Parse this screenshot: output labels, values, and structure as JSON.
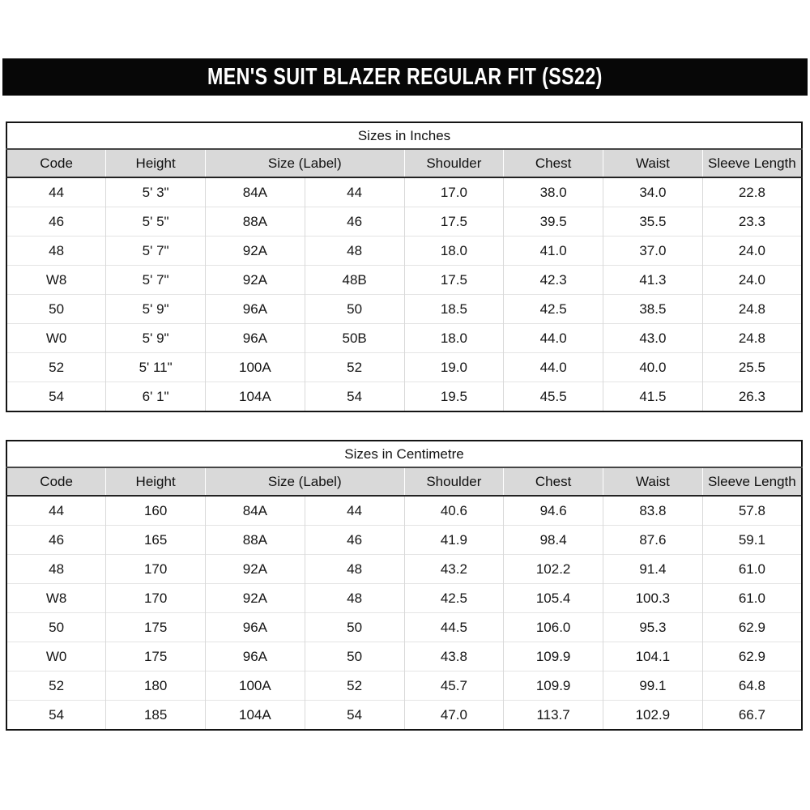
{
  "title_bar": {
    "text": "MEN'S SUIT BLAZER REGULAR FIT (SS22)",
    "background": "#070707",
    "text_color": "#ffffff"
  },
  "header": {
    "columns": [
      "Code",
      "Height",
      "Size (Label)",
      "Shoulder",
      "Chest",
      "Waist",
      "Sleeve Length"
    ],
    "spans": [
      1,
      1,
      2,
      1,
      1,
      1,
      1
    ],
    "background": "#d9d9d9"
  },
  "tables": [
    {
      "title": "Sizes in Inches",
      "rows": [
        [
          "44",
          "5' 3\"",
          "84A",
          "44",
          "17.0",
          "38.0",
          "34.0",
          "22.8"
        ],
        [
          "46",
          "5' 5\"",
          "88A",
          "46",
          "17.5",
          "39.5",
          "35.5",
          "23.3"
        ],
        [
          "48",
          "5' 7\"",
          "92A",
          "48",
          "18.0",
          "41.0",
          "37.0",
          "24.0"
        ],
        [
          "W8",
          "5' 7\"",
          "92A",
          "48B",
          "17.5",
          "42.3",
          "41.3",
          "24.0"
        ],
        [
          "50",
          "5' 9\"",
          "96A",
          "50",
          "18.5",
          "42.5",
          "38.5",
          "24.8"
        ],
        [
          "W0",
          "5' 9\"",
          "96A",
          "50B",
          "18.0",
          "44.0",
          "43.0",
          "24.8"
        ],
        [
          "52",
          "5' 11\"",
          "100A",
          "52",
          "19.0",
          "44.0",
          "40.0",
          "25.5"
        ],
        [
          "54",
          "6' 1\"",
          "104A",
          "54",
          "19.5",
          "45.5",
          "41.5",
          "26.3"
        ]
      ]
    },
    {
      "title": "Sizes in Centimetre",
      "rows": [
        [
          "44",
          "160",
          "84A",
          "44",
          "40.6",
          "94.6",
          "83.8",
          "57.8"
        ],
        [
          "46",
          "165",
          "88A",
          "46",
          "41.9",
          "98.4",
          "87.6",
          "59.1"
        ],
        [
          "48",
          "170",
          "92A",
          "48",
          "43.2",
          "102.2",
          "91.4",
          "61.0"
        ],
        [
          "W8",
          "170",
          "92A",
          "48",
          "42.5",
          "105.4",
          "100.3",
          "61.0"
        ],
        [
          "50",
          "175",
          "96A",
          "50",
          "44.5",
          "106.0",
          "95.3",
          "62.9"
        ],
        [
          "W0",
          "175",
          "96A",
          "50",
          "43.8",
          "109.9",
          "104.1",
          "62.9"
        ],
        [
          "52",
          "180",
          "100A",
          "52",
          "45.7",
          "109.9",
          "99.1",
          "64.8"
        ],
        [
          "54",
          "185",
          "104A",
          "54",
          "47.0",
          "113.7",
          "102.9",
          "66.7"
        ]
      ]
    }
  ],
  "colors": {
    "outer_border": "#141414",
    "header_bg": "#d9d9d9",
    "row_divider": "#e4e4e4",
    "column_divider": "#d9d9d9",
    "title_bar_bg": "#070707"
  }
}
